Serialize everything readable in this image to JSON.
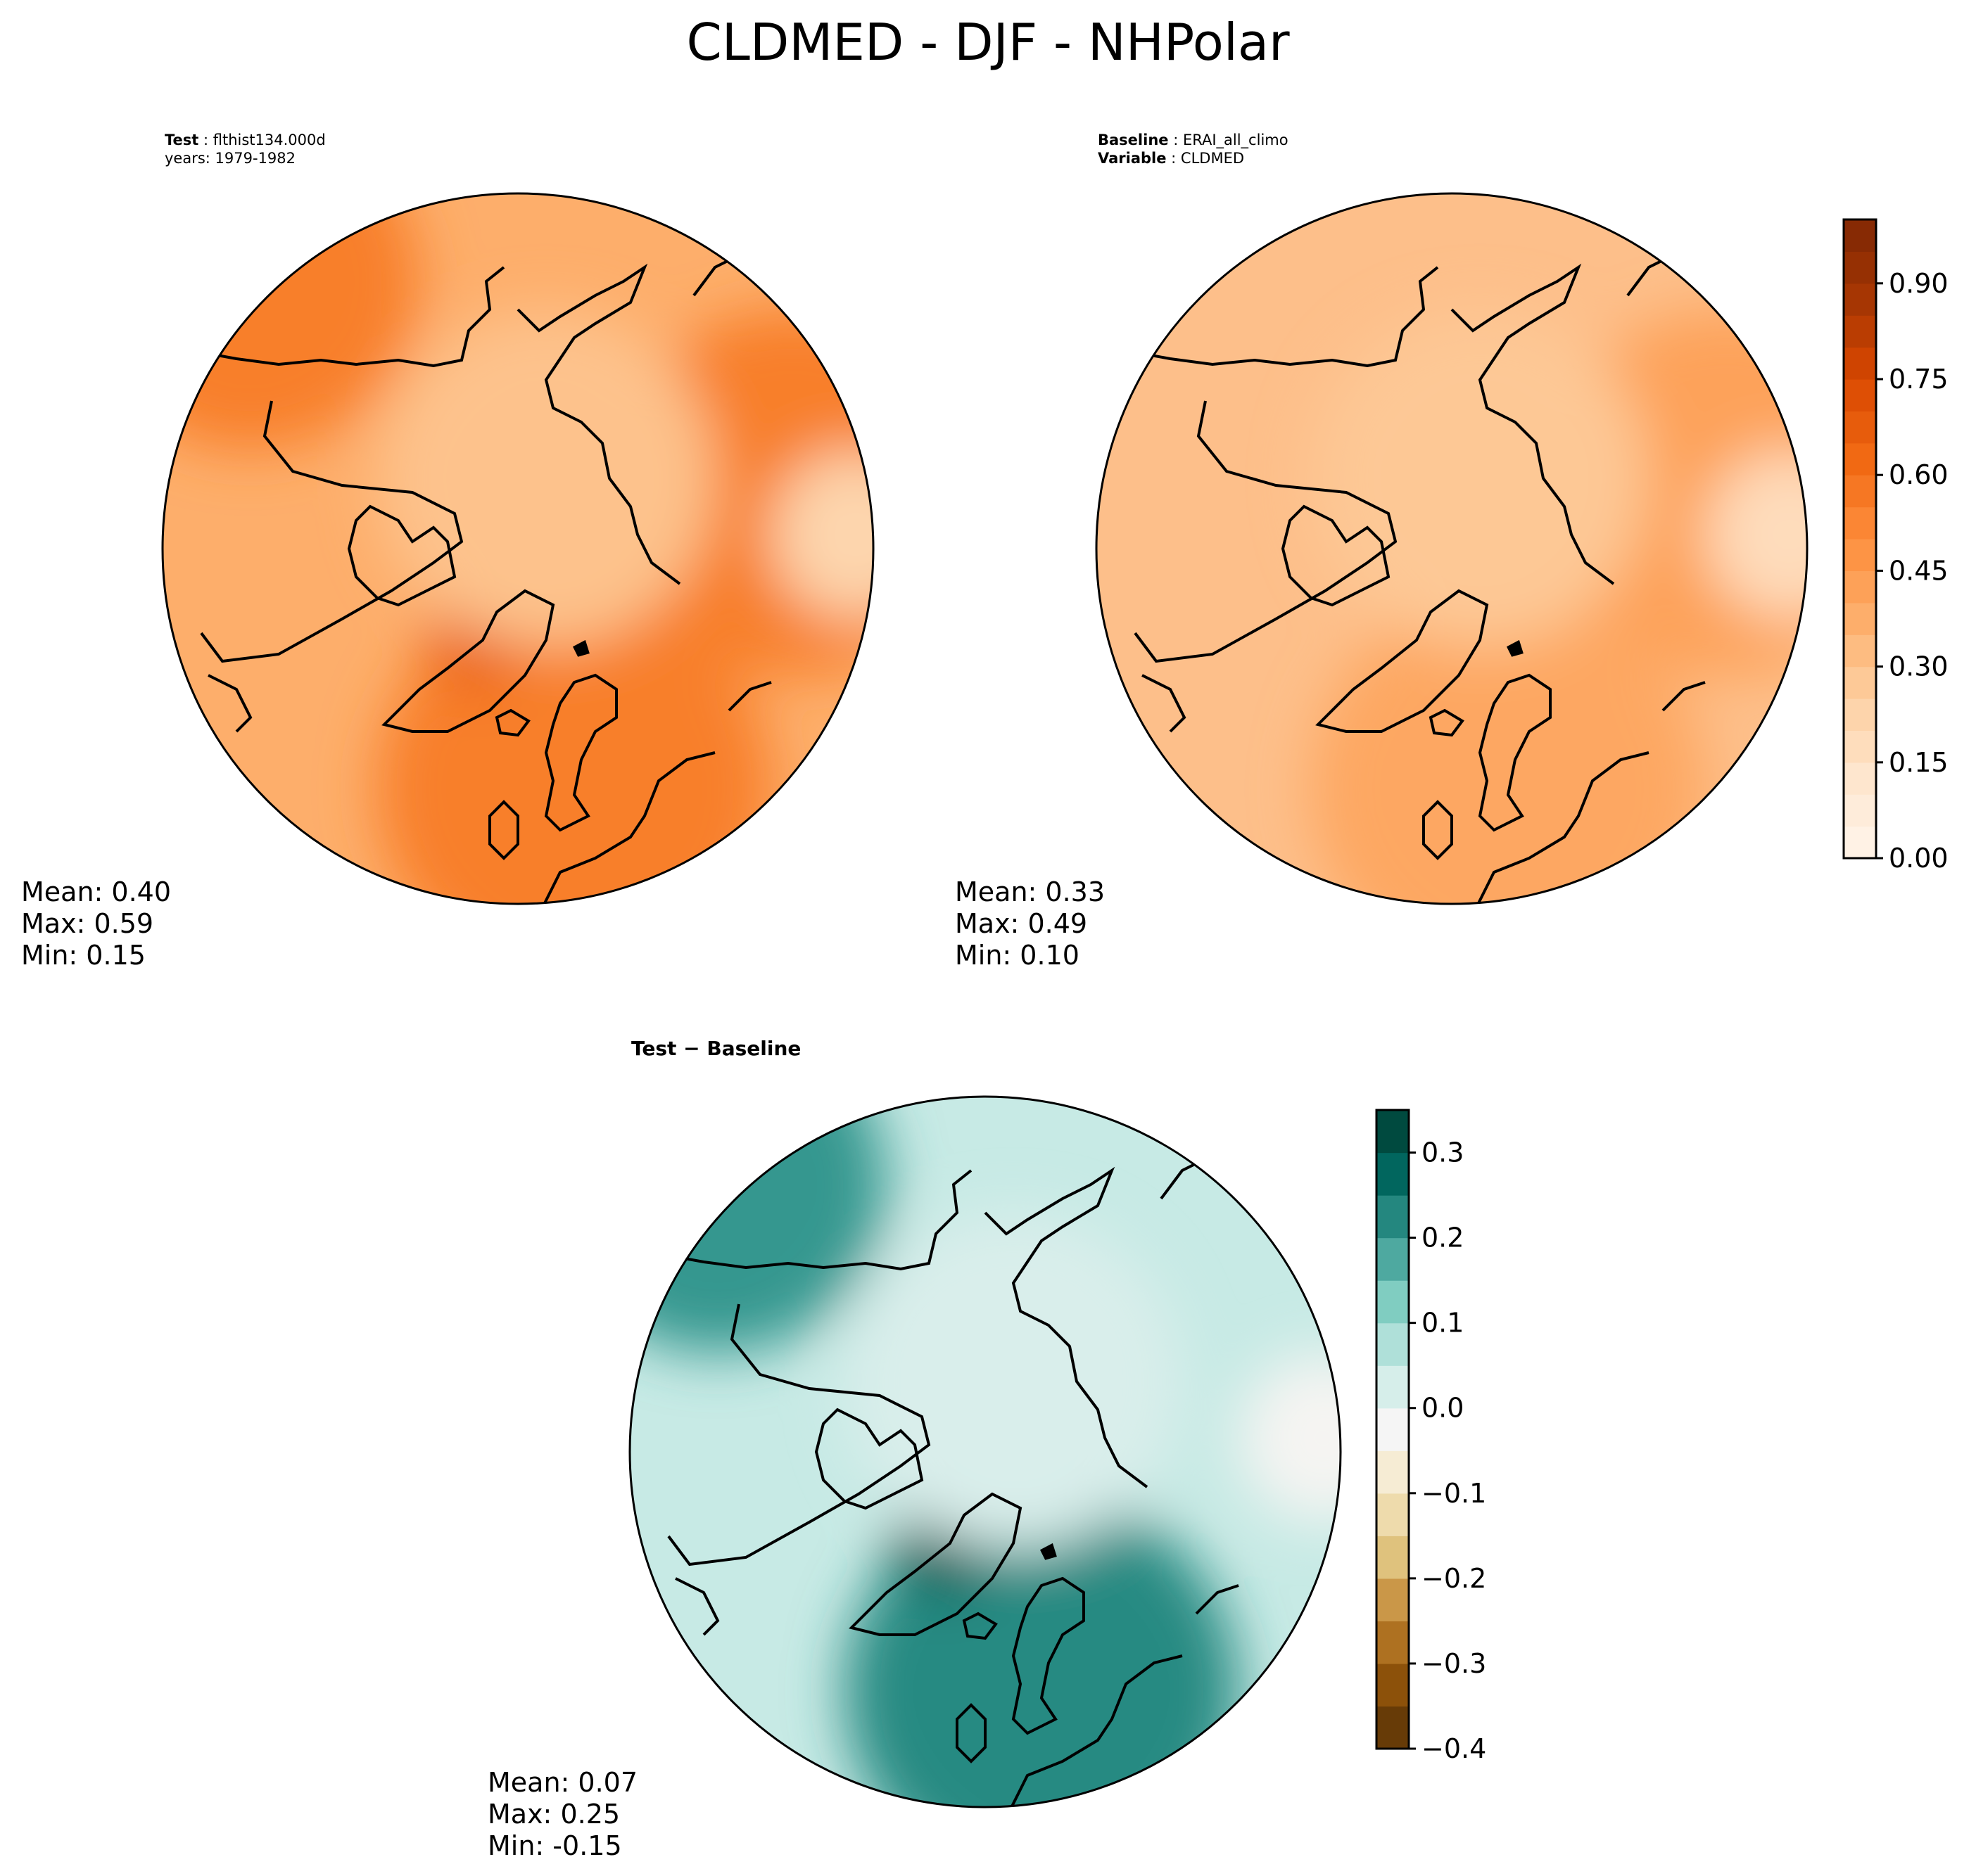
{
  "figure_title": "CLDMED - DJF - NHPolar",
  "chart_data": [
    {
      "type": "heatmap",
      "projection": "north-polar-stereographic",
      "panel": "test",
      "header": {
        "label": "Test",
        "name": "flthist134.000d",
        "years": "years: 1979-1982"
      },
      "stats": {
        "mean": "Mean:  0.40",
        "max": "Max:  0.59",
        "min": "Min:  0.15"
      },
      "field_blobs": [
        {
          "where": "north-pacific",
          "value": 0.55
        },
        {
          "where": "east-asia",
          "value": 0.55
        },
        {
          "where": "north-atlantic",
          "value": 0.55
        },
        {
          "where": "greenland-peak",
          "value": 0.66
        },
        {
          "where": "central-arctic",
          "value": 0.3
        },
        {
          "where": "east-edge",
          "value": 0.22
        }
      ]
    },
    {
      "type": "heatmap",
      "projection": "north-polar-stereographic",
      "panel": "baseline",
      "header": {
        "label": "Baseline",
        "name": "ERAI_all_climo",
        "variable_label": "Variable",
        "variable": "CLDMED"
      },
      "stats": {
        "mean": "Mean:  0.33",
        "max": "Max:  0.49",
        "min": "Min:  0.10"
      },
      "colorbar": {
        "colormap": "Oranges",
        "range": [
          0.0,
          1.0
        ],
        "levels": 20,
        "ticks": [
          0.0,
          0.15,
          0.3,
          0.45,
          0.6,
          0.75,
          0.9
        ],
        "tick_labels": [
          "0.00",
          "0.15",
          "0.30",
          "0.45",
          "0.60",
          "0.75",
          "0.90"
        ]
      },
      "field_blobs": [
        {
          "where": "east-asia",
          "value": 0.42
        },
        {
          "where": "north-atlantic",
          "value": 0.4
        },
        {
          "where": "central-arctic",
          "value": 0.28
        },
        {
          "where": "east-edge",
          "value": 0.18
        }
      ]
    },
    {
      "type": "heatmap",
      "projection": "north-polar-stereographic",
      "panel": "difference",
      "header": {
        "label": "Test − Baseline"
      },
      "stats": {
        "mean": "Mean:  0.07",
        "max": "Max:  0.25",
        "min": "Min: -0.15"
      },
      "colorbar": {
        "colormap": "BrBG",
        "range": [
          -0.4,
          0.35
        ],
        "levels": 15,
        "ticks": [
          -0.4,
          -0.3,
          -0.2,
          -0.1,
          0.0,
          0.1,
          0.2,
          0.3
        ],
        "tick_labels": [
          "−0.4",
          "−0.3",
          "−0.2",
          "−0.1",
          "0.0",
          "0.1",
          "0.2",
          "0.3"
        ]
      },
      "field_blobs": [
        {
          "where": "north-pacific",
          "value": 0.2
        },
        {
          "where": "north-atlantic",
          "value": 0.22
        },
        {
          "where": "greenland-peak",
          "value": 0.3
        },
        {
          "where": "central-arctic",
          "value": 0.02
        },
        {
          "where": "east-edge",
          "value": -0.03
        }
      ]
    }
  ],
  "colors": {
    "coastline": "#000000",
    "oranges": [
      "#fff5eb",
      "#fee6ce",
      "#fdd0a2",
      "#fdae6b",
      "#fd8d3c",
      "#f16913",
      "#d94801",
      "#a63603",
      "#7f2704"
    ],
    "brbg": [
      "#543005",
      "#8c510a",
      "#bf812d",
      "#dfc27d",
      "#f6e8c3",
      "#f5f5f5",
      "#c7eae5",
      "#80cdc1",
      "#35978f",
      "#01665e",
      "#003c30"
    ]
  }
}
